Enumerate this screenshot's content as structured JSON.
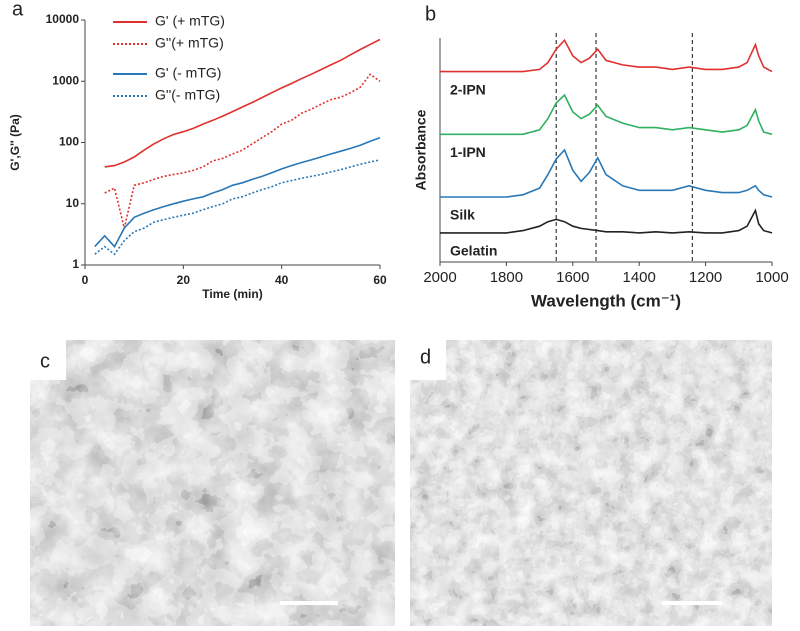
{
  "chart_data": [
    {
      "type": "line",
      "label": "a",
      "xlabel": "Time (min)",
      "ylabel": "G',G'' (Pa)",
      "yscale": "log",
      "legend": "top-left",
      "xlim": [
        0,
        60
      ],
      "xticks": [
        0,
        20,
        40,
        60
      ],
      "ylim": [
        1,
        10000
      ],
      "yticks": [
        1,
        10,
        100,
        1000,
        10000
      ],
      "x": [
        2,
        4,
        6,
        8,
        10,
        12,
        14,
        16,
        18,
        20,
        22,
        24,
        26,
        28,
        30,
        32,
        34,
        36,
        38,
        40,
        42,
        44,
        46,
        48,
        50,
        52,
        54,
        56,
        58,
        60
      ],
      "series": [
        {
          "name": "G' (+ mTG)",
          "color": "#e03030",
          "dash": "solid",
          "values": [
            null,
            40,
            42,
            48,
            58,
            75,
            95,
            115,
            135,
            150,
            170,
            200,
            230,
            270,
            320,
            380,
            450,
            540,
            650,
            780,
            920,
            1100,
            1300,
            1550,
            1850,
            2200,
            2700,
            3300,
            4000,
            4800
          ]
        },
        {
          "name": "G''(+ mTG)",
          "color": "#e03030",
          "dash": "dotted",
          "values": [
            null,
            15,
            18,
            4,
            20,
            22,
            25,
            28,
            30,
            32,
            35,
            40,
            50,
            55,
            65,
            75,
            95,
            120,
            150,
            200,
            230,
            300,
            350,
            420,
            500,
            550,
            650,
            800,
            1300,
            1000
          ]
        },
        {
          "name": "G' (- mTG)",
          "color": "#2878b8",
          "dash": "solid",
          "values": [
            2,
            3,
            2,
            4,
            6,
            7,
            8,
            9,
            10,
            11,
            12,
            13,
            15,
            17,
            20,
            22,
            25,
            28,
            32,
            37,
            42,
            47,
            52,
            58,
            65,
            72,
            80,
            90,
            105,
            120
          ]
        },
        {
          "name": "G''(- mTG)",
          "color": "#2878b8",
          "dash": "dotted",
          "values": [
            1.5,
            2,
            1.5,
            2.5,
            3.5,
            4,
            5,
            5.5,
            6,
            6.5,
            7,
            8,
            9,
            10,
            12,
            13,
            15,
            17,
            19,
            22,
            24,
            26,
            28,
            30,
            33,
            36,
            40,
            44,
            48,
            52
          ]
        }
      ]
    },
    {
      "type": "line",
      "label": "b",
      "xlabel": "Wavelength (cm⁻¹)",
      "ylabel": "Absorbance",
      "legend": "inline",
      "xlim": [
        2000,
        1000
      ],
      "xticks": [
        2000,
        1800,
        1600,
        1400,
        1200,
        1000
      ],
      "ylim": [
        0,
        10
      ],
      "reference_lines": [
        1650,
        1530,
        1240
      ],
      "x": [
        2000,
        1900,
        1800,
        1750,
        1700,
        1675,
        1650,
        1625,
        1600,
        1575,
        1550,
        1525,
        1500,
        1450,
        1400,
        1350,
        1300,
        1250,
        1200,
        1150,
        1100,
        1075,
        1050,
        1040,
        1025,
        1000
      ],
      "series": [
        {
          "name": "2-IPN",
          "color": "#e03030",
          "values": [
            8.5,
            8.5,
            8.5,
            8.5,
            8.6,
            8.9,
            9.5,
            9.9,
            9.2,
            8.9,
            9.1,
            9.5,
            9.0,
            8.8,
            8.7,
            8.7,
            8.6,
            8.7,
            8.6,
            8.6,
            8.7,
            8.9,
            9.7,
            9.2,
            8.7,
            8.5
          ]
        },
        {
          "name": "1-IPN",
          "color": "#30b060",
          "values": [
            5.7,
            5.7,
            5.7,
            5.7,
            5.9,
            6.4,
            7.1,
            7.45,
            6.7,
            6.4,
            6.6,
            7.0,
            6.5,
            6.2,
            6.0,
            6.0,
            5.9,
            6.0,
            5.9,
            5.8,
            5.9,
            6.1,
            6.8,
            6.3,
            5.8,
            5.7
          ]
        },
        {
          "name": "Silk",
          "color": "#2878b8",
          "values": [
            2.9,
            2.9,
            2.9,
            3.0,
            3.3,
            3.9,
            4.6,
            5.0,
            4.1,
            3.6,
            4.0,
            4.65,
            3.9,
            3.4,
            3.2,
            3.2,
            3.2,
            3.4,
            3.2,
            3.1,
            3.1,
            3.2,
            3.4,
            3.2,
            3.0,
            2.9
          ]
        },
        {
          "name": "Gelatin",
          "color": "#222222",
          "values": [
            1.3,
            1.3,
            1.3,
            1.4,
            1.6,
            1.8,
            1.9,
            1.8,
            1.6,
            1.5,
            1.45,
            1.4,
            1.35,
            1.35,
            1.3,
            1.35,
            1.3,
            1.35,
            1.3,
            1.3,
            1.4,
            1.6,
            2.3,
            1.7,
            1.4,
            1.3
          ]
        }
      ]
    }
  ],
  "panels": [
    {
      "label": "c"
    },
    {
      "label": "d"
    }
  ]
}
